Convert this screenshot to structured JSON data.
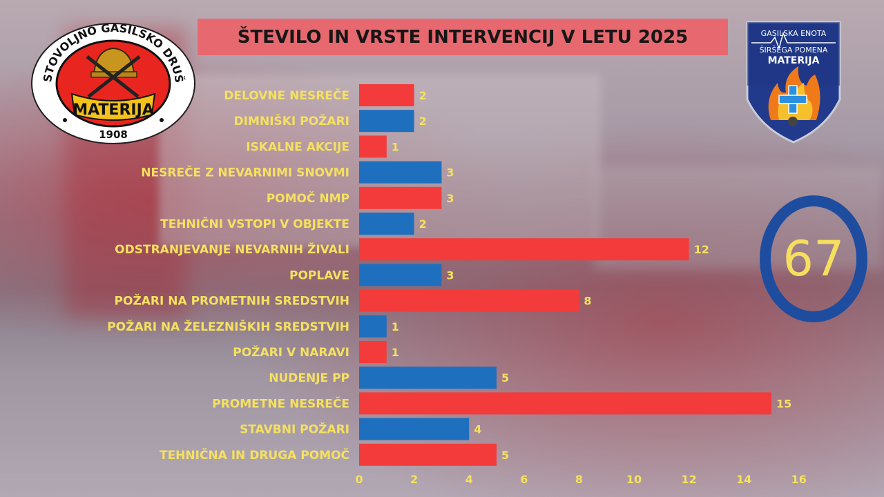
{
  "title": "ŠTEVILO IN VRSTE INTERVENCIJ V LETU 2025",
  "total": "67",
  "logo_left": {
    "ring_text": "PROSTOVOLJNO GASILSKO DRUŠTVO",
    "banner": "MATERIJA",
    "year": "1908"
  },
  "logo_right": {
    "line1": "GASILSKA ENOTA",
    "line2": "ŠIRŠEGA POMENA",
    "line3": "MATERIJA"
  },
  "colors": {
    "red": "#f33b3b",
    "blue": "#1f6fbf",
    "label": "#f5e15f",
    "ring": "#1e4da0",
    "title_bg": "#e7696f"
  },
  "chart_data": {
    "type": "bar",
    "orientation": "horizontal",
    "categories": [
      "DELOVNE NESREČE",
      "DIMNIŠKI POŽARI",
      "ISKALNE AKCIJE",
      "NESREČE Z NEVARNIMI SNOVMI",
      "POMOČ NMP",
      "TEHNIČNI VSTOPI V OBJEKTE",
      "ODSTRANJEVANJE NEVARNIH ŽIVALI",
      "POPLAVE",
      "POŽARI NA PROMETNIH SREDSTVIH",
      "POŽARI NA ŽELEZNIŠKIH SREDSTVIH",
      "POŽARI V NARAVI",
      "NUDENJE PP",
      "PROMETNE NESREČE",
      "STAVBNI POŽARI",
      "TEHNIČNA IN DRUGA POMOČ"
    ],
    "values": [
      2,
      2,
      1,
      3,
      3,
      2,
      12,
      3,
      8,
      1,
      1,
      5,
      15,
      4,
      5
    ],
    "bar_colors": [
      "red",
      "blue",
      "red",
      "blue",
      "red",
      "blue",
      "red",
      "blue",
      "red",
      "blue",
      "red",
      "blue",
      "red",
      "blue",
      "red"
    ],
    "xlim": [
      0,
      16
    ],
    "xticks": [
      0,
      2,
      4,
      6,
      8,
      10,
      12,
      14,
      16
    ],
    "grid": false,
    "legend": "none"
  }
}
